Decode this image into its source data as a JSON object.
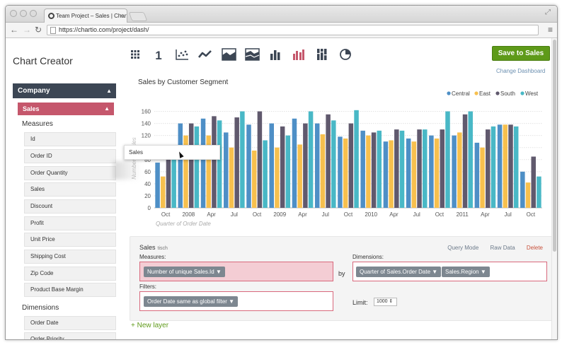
{
  "browser": {
    "tab_title": "Team Project – Sales | Chartio",
    "url": "https://chartio.com/project/dash/"
  },
  "app": {
    "title": "Chart Creator",
    "save_label": "Save to Sales",
    "change_dashboard": "Change Dashboard",
    "chart_type_icons": [
      "table-icon",
      "single-value-icon",
      "scatter-icon",
      "line-icon",
      "area-icon",
      "stacked-area-icon",
      "bar-icon",
      "grouped-bar-icon",
      "stacked-bar-icon",
      "pie-icon"
    ],
    "active_chart_type": "grouped-bar-icon"
  },
  "sidebar": {
    "source": "Company",
    "table": "Sales",
    "measures_title": "Measures",
    "measures": [
      "Id",
      "Order ID",
      "Order Quantity",
      "Sales",
      "Discount",
      "Profit",
      "Unit Price",
      "Shipping Cost",
      "Zip Code",
      "Product Base Margin"
    ],
    "dimensions_title": "Dimensions",
    "dimensions": [
      "Order Date",
      "Order Priority"
    ],
    "dragging_item": "Sales"
  },
  "chart_title": "Sales by Customer Segment",
  "layer": {
    "name": "Sales",
    "subname": "tisch",
    "query_mode": "Query Mode",
    "raw_data": "Raw Data",
    "delete": "Delete",
    "measures_label": "Measures:",
    "measures_pill": "Number of unique Sales.Id",
    "by": "by",
    "dimensions_label": "Dimensions:",
    "dimension_pills": [
      "Quarter of Sales.Order Date",
      "Sales.Region"
    ],
    "filters_label": "Filters:",
    "filter_pill": "Order Date same as global filter",
    "limit_label": "Limit:",
    "limit_value": "1000"
  },
  "new_layer": "+ New layer",
  "chart_data": {
    "type": "bar",
    "title": "",
    "xlabel": "Quarter of Order Date",
    "ylabel": "Number of Sales",
    "ylim": [
      0,
      170
    ],
    "yticks": [
      0,
      20,
      40,
      60,
      80,
      100,
      120,
      140,
      160
    ],
    "grid": true,
    "legend_position": "top-right",
    "x_tick_labels": [
      "Oct",
      "2008",
      "Apr",
      "Jul",
      "Oct",
      "2009",
      "Apr",
      "Jul",
      "Oct",
      "2010",
      "Apr",
      "Jul",
      "Oct",
      "2011",
      "Apr",
      "Jul",
      "Oct"
    ],
    "categories": [
      "2007 Q4",
      "2008 Q1",
      "2008 Q2",
      "2008 Q3",
      "2008 Q4",
      "2009 Q1",
      "2009 Q2",
      "2009 Q3",
      "2009 Q4",
      "2010 Q1",
      "2010 Q2",
      "2010 Q3",
      "2010 Q4",
      "2011 Q1",
      "2011 Q2",
      "2011 Q3",
      "2011 Q4"
    ],
    "series": [
      {
        "name": "Central",
        "color": "#4e8fc6",
        "values": [
          75,
          140,
          148,
          125,
          138,
          140,
          148,
          140,
          118,
          128,
          110,
          115,
          120,
          120,
          108,
          138,
          60
        ]
      },
      {
        "name": "East",
        "color": "#f7c04e",
        "values": [
          52,
          120,
          120,
          100,
          95,
          100,
          105,
          122,
          115,
          120,
          112,
          110,
          115,
          125,
          100,
          138,
          42
        ]
      },
      {
        "name": "South",
        "color": "#60596d",
        "values": [
          80,
          140,
          152,
          150,
          160,
          135,
          140,
          155,
          140,
          125,
          130,
          130,
          130,
          155,
          130,
          138,
          85
        ]
      },
      {
        "name": "West",
        "color": "#49b8c6",
        "values": [
          82,
          135,
          145,
          160,
          112,
          120,
          160,
          145,
          162,
          128,
          128,
          130,
          160,
          160,
          135,
          135,
          52
        ]
      }
    ]
  }
}
